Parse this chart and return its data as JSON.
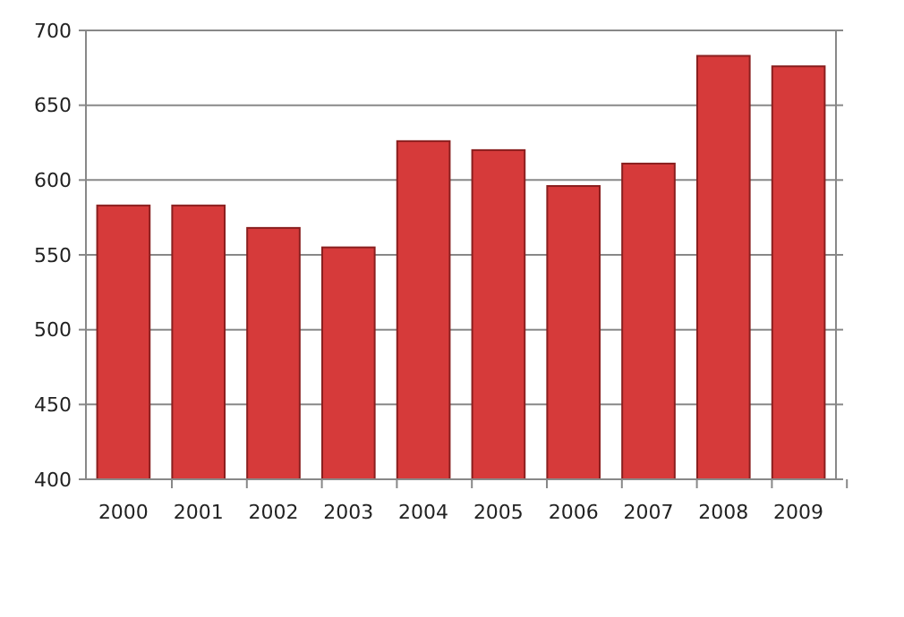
{
  "chart_data": {
    "type": "bar",
    "categories": [
      "2000",
      "2001",
      "2002",
      "2003",
      "2004",
      "2005",
      "2006",
      "2007",
      "2008",
      "2009"
    ],
    "values": [
      583,
      583,
      568,
      555,
      626,
      620,
      596,
      611,
      683,
      676
    ],
    "color": "#d63a3a",
    "ylim": [
      400,
      700
    ],
    "yticks": [
      400,
      450,
      500,
      550,
      600,
      650,
      700
    ],
    "grid": "y"
  }
}
